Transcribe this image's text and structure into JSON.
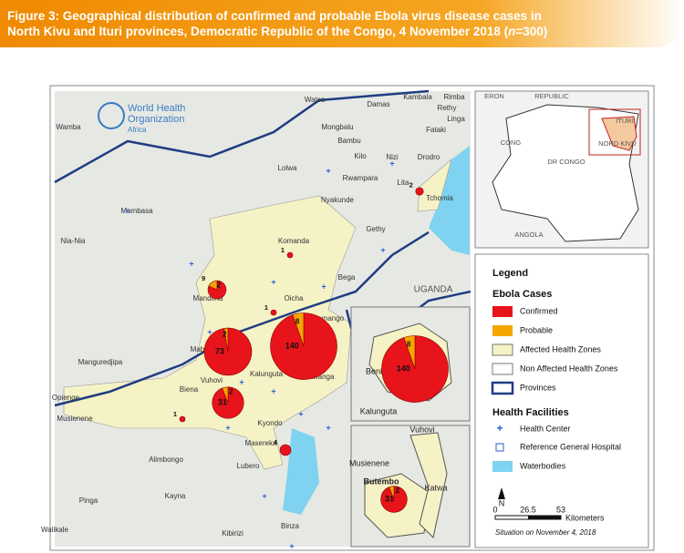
{
  "title": {
    "line1": "Figure 3: Geographical distribution of confirmed and probable Ebola virus disease cases in",
    "line2": "North Kivu and Ituri provinces, Democratic Republic of the Congo, 4 November 2018 (",
    "n": "n",
    "rest": "=300)"
  },
  "logo": {
    "line1": "World Health",
    "line2": "Organization",
    "region": "Africa"
  },
  "places": [
    "Wamba",
    "Mambasa",
    "Nia-Nia",
    "Lolwa",
    "Mongbalu",
    "Damas",
    "Watsa",
    "Kambala",
    "Rimba",
    "Rethy",
    "Linga",
    "Fataki",
    "Bambu",
    "Kilo",
    "Nizi",
    "Drodro",
    "Rwampara",
    "Lita",
    "Nyakunde",
    "Tchomia",
    "Gethy",
    "Komanda",
    "Bega",
    "Mandima",
    "Oicha",
    "Kamango",
    "Mabalako",
    "Beni",
    "Mutwanga",
    "Kalunguta",
    "Manguredjipa",
    "Vuhovi",
    "Biena",
    "Musienene",
    "Opienge",
    "Kyondo",
    "Masereka",
    "Alimbongo",
    "Lubero",
    "Kayna",
    "Pinga",
    "Walikale",
    "Kibirizi",
    "Binza",
    "UGANDA"
  ],
  "locator_labels": [
    "ERON",
    "REPUBLIC",
    "CONG",
    "DR CONGO",
    "ITURI",
    "NORD KIVU",
    "ANGOLA"
  ],
  "beni_inset_labels": [
    "Beni",
    "Kalunguta"
  ],
  "butembo_inset_labels": [
    "Vuhovi",
    "Musienene",
    "Butembo",
    "Katwa"
  ],
  "pies": [
    {
      "confirmed": 140,
      "probable": 8
    },
    {
      "confirmed": 73,
      "probable": 2
    },
    {
      "confirmed": 31,
      "probable": 2
    },
    {
      "confirmed": 9,
      "probable": 2
    },
    {
      "confirmed": 4
    },
    {
      "confirmed": 2
    },
    {
      "confirmed": 1
    },
    {
      "confirmed": 1
    },
    {
      "confirmed": 1
    }
  ],
  "legend": {
    "title": "Legend",
    "cases_heading": "Ebola Cases",
    "facilities_heading": "Health Facilities",
    "items": [
      "Confirmed",
      "Probable",
      "Affected Health Zones",
      "Non Affected Health Zones",
      "Provinces",
      "Health Center",
      "Reference General Hospital",
      "Waterbodies"
    ],
    "north": "N",
    "scale": [
      "0",
      "26.5",
      "53"
    ],
    "scale_unit": "Kilometers",
    "situation": "Situation on November 4, 2018"
  }
}
